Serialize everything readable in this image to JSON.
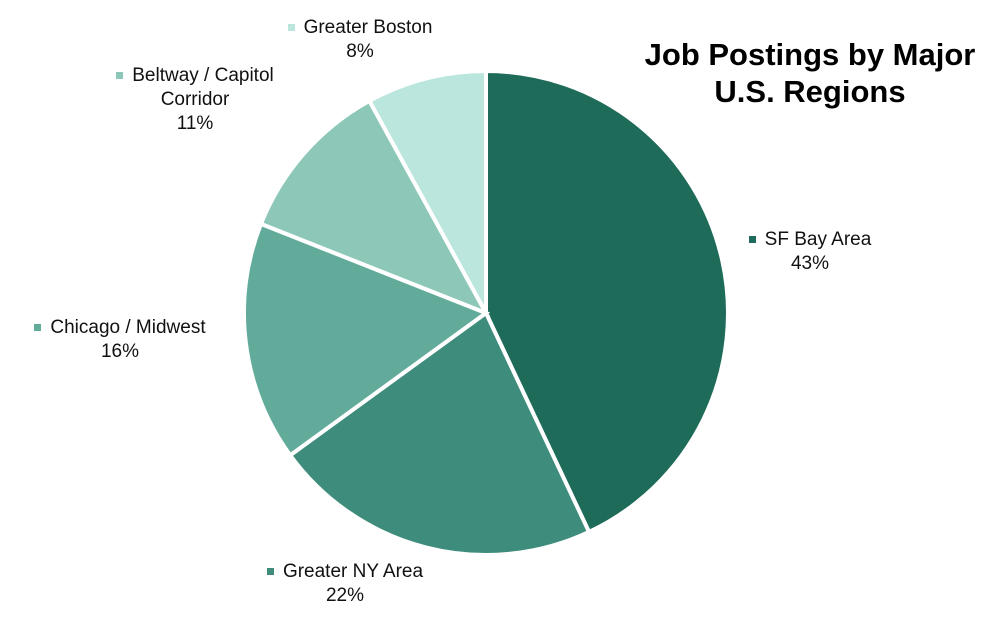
{
  "chart_data": {
    "type": "pie",
    "title": "Job Postings by Major U.S. Regions",
    "categories": [
      "SF Bay Area",
      "Greater NY Area",
      "Chicago / Midwest",
      "Beltway / Capitol Corridor",
      "Greater Boston"
    ],
    "values": [
      43,
      22,
      16,
      11,
      8
    ],
    "value_labels": [
      "43%",
      "22%",
      "16%",
      "11%",
      "8%"
    ],
    "colors": [
      "#1f6b5a",
      "#3e8c7b",
      "#62ab9b",
      "#8dc7b8",
      "#bbe6dd"
    ]
  }
}
